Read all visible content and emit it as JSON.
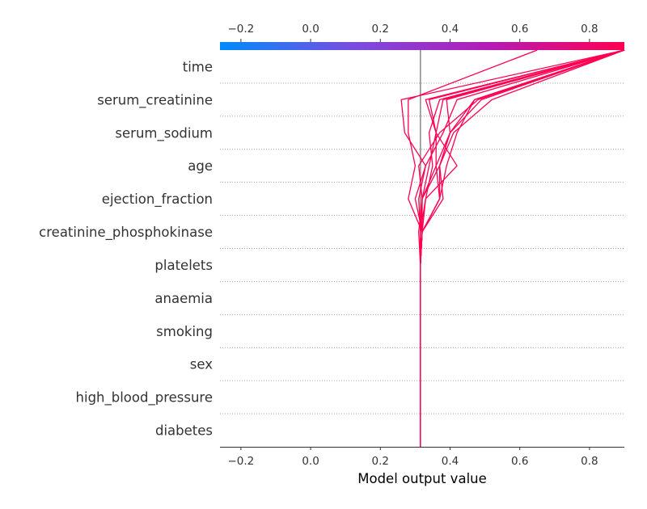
{
  "chart_data": {
    "type": "line",
    "xlabel": "Model output value",
    "xlim": [
      -0.26,
      0.9
    ],
    "base_value": 0.315,
    "x_ticks": [
      "−0.2",
      "0.0",
      "0.2",
      "0.4",
      "0.6",
      "0.8"
    ],
    "x_tick_values": [
      -0.2,
      0.0,
      0.2,
      0.4,
      0.6,
      0.8
    ],
    "features": [
      "time",
      "serum_creatinine",
      "serum_sodium",
      "age",
      "ejection_fraction",
      "creatinine_phosphokinase",
      "platelets",
      "anaemia",
      "smoking",
      "sex",
      "high_blood_pressure",
      "diabetes"
    ],
    "colormap": [
      "#008bfb",
      "#7a4ce0",
      "#b41cb4",
      "#ff0052"
    ],
    "line_color": "#ff0052",
    "base_line_color": "#888888",
    "series": [
      {
        "values": [
          0.315,
          0.315,
          0.315,
          0.315,
          0.315,
          0.315,
          0.315,
          0.32,
          0.31,
          0.37,
          0.48,
          0.9
        ]
      },
      {
        "values": [
          0.315,
          0.315,
          0.315,
          0.315,
          0.315,
          0.315,
          0.315,
          0.31,
          0.33,
          0.38,
          0.42,
          0.9
        ]
      },
      {
        "values": [
          0.315,
          0.315,
          0.315,
          0.315,
          0.315,
          0.315,
          0.32,
          0.37,
          0.37,
          0.4,
          0.47,
          0.9
        ]
      },
      {
        "values": [
          0.315,
          0.315,
          0.315,
          0.315,
          0.315,
          0.315,
          0.32,
          0.38,
          0.37,
          0.41,
          0.52,
          0.9
        ]
      },
      {
        "values": [
          0.315,
          0.315,
          0.315,
          0.315,
          0.315,
          0.315,
          0.32,
          0.3,
          0.33,
          0.27,
          0.26,
          0.9
        ]
      },
      {
        "values": [
          0.315,
          0.315,
          0.315,
          0.315,
          0.315,
          0.315,
          0.32,
          0.28,
          0.3,
          0.28,
          0.28,
          0.65
        ]
      },
      {
        "values": [
          0.315,
          0.315,
          0.315,
          0.315,
          0.315,
          0.315,
          0.31,
          0.32,
          0.36,
          0.36,
          0.34,
          0.9
        ]
      },
      {
        "values": [
          0.315,
          0.315,
          0.315,
          0.315,
          0.315,
          0.315,
          0.32,
          0.32,
          0.37,
          0.4,
          0.49,
          0.9
        ]
      },
      {
        "values": [
          0.315,
          0.315,
          0.315,
          0.315,
          0.315,
          0.315,
          0.32,
          0.33,
          0.42,
          0.36,
          0.33,
          0.9
        ]
      },
      {
        "values": [
          0.315,
          0.315,
          0.315,
          0.315,
          0.315,
          0.315,
          0.315,
          0.33,
          0.35,
          0.34,
          0.37,
          0.9
        ]
      },
      {
        "values": [
          0.315,
          0.315,
          0.315,
          0.315,
          0.315,
          0.315,
          0.32,
          0.37,
          0.39,
          0.42,
          0.47,
          0.9
        ]
      },
      {
        "values": [
          0.315,
          0.315,
          0.315,
          0.315,
          0.315,
          0.315,
          0.315,
          0.32,
          0.34,
          0.36,
          0.38,
          0.9
        ]
      },
      {
        "values": [
          0.315,
          0.315,
          0.315,
          0.315,
          0.315,
          0.315,
          0.32,
          0.37,
          0.36,
          0.4,
          0.39,
          0.9
        ]
      }
    ]
  }
}
